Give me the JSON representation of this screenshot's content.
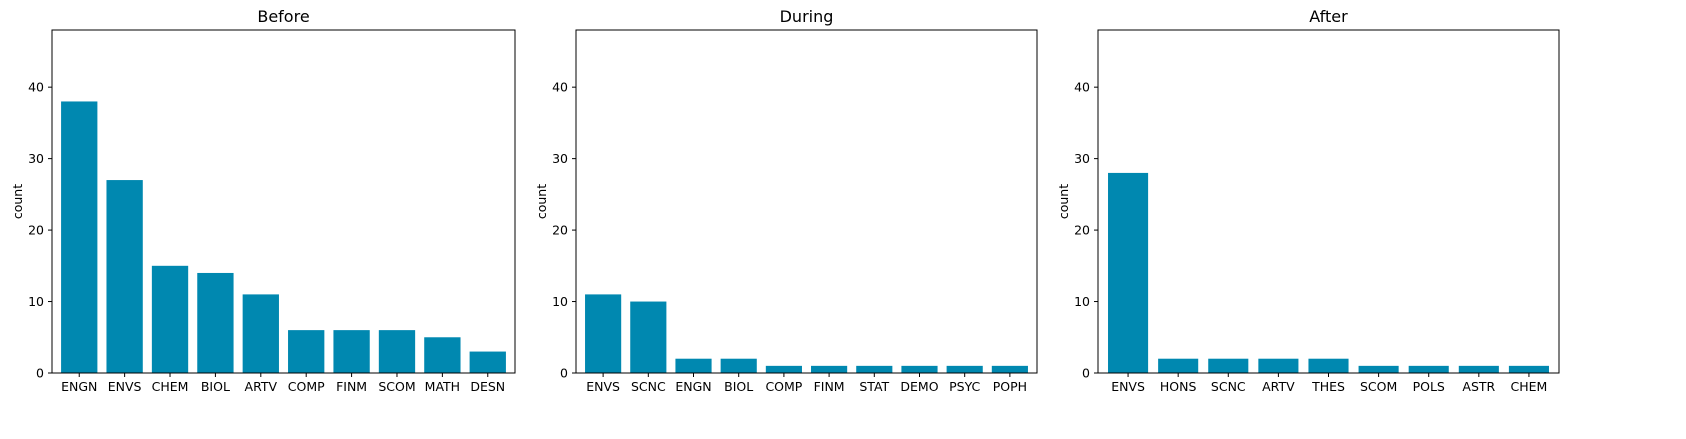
{
  "figure": {
    "bar_color": "#0088b0"
  },
  "chart_data": [
    {
      "type": "bar",
      "title": "Before",
      "xlabel": "",
      "ylabel": "count",
      "ylim": [
        0,
        48
      ],
      "yticks": [
        0,
        10,
        20,
        30,
        40
      ],
      "categories": [
        "ENGN",
        "ENVS",
        "CHEM",
        "BIOL",
        "ARTV",
        "COMP",
        "FINM",
        "SCOM",
        "MATH",
        "DESN"
      ],
      "values": [
        38,
        27,
        15,
        14,
        11,
        6,
        6,
        6,
        5,
        3
      ],
      "grid": false
    },
    {
      "type": "bar",
      "title": "During",
      "xlabel": "",
      "ylabel": "count",
      "ylim": [
        0,
        48
      ],
      "yticks": [
        0,
        10,
        20,
        30,
        40
      ],
      "categories": [
        "ENVS",
        "SCNC",
        "ENGN",
        "BIOL",
        "COMP",
        "FINM",
        "STAT",
        "DEMO",
        "PSYC",
        "POPH"
      ],
      "values": [
        11,
        10,
        2,
        2,
        1,
        1,
        1,
        1,
        1,
        1
      ],
      "grid": false
    },
    {
      "type": "bar",
      "title": "After",
      "xlabel": "",
      "ylabel": "count",
      "ylim": [
        0,
        48
      ],
      "yticks": [
        0,
        10,
        20,
        30,
        40
      ],
      "categories": [
        "ENVS",
        "HONS",
        "SCNC",
        "ARTV",
        "THES",
        "SCOM",
        "POLS",
        "ASTR",
        "CHEM"
      ],
      "values": [
        28,
        2,
        2,
        2,
        2,
        1,
        1,
        1,
        1
      ],
      "grid": false
    }
  ]
}
